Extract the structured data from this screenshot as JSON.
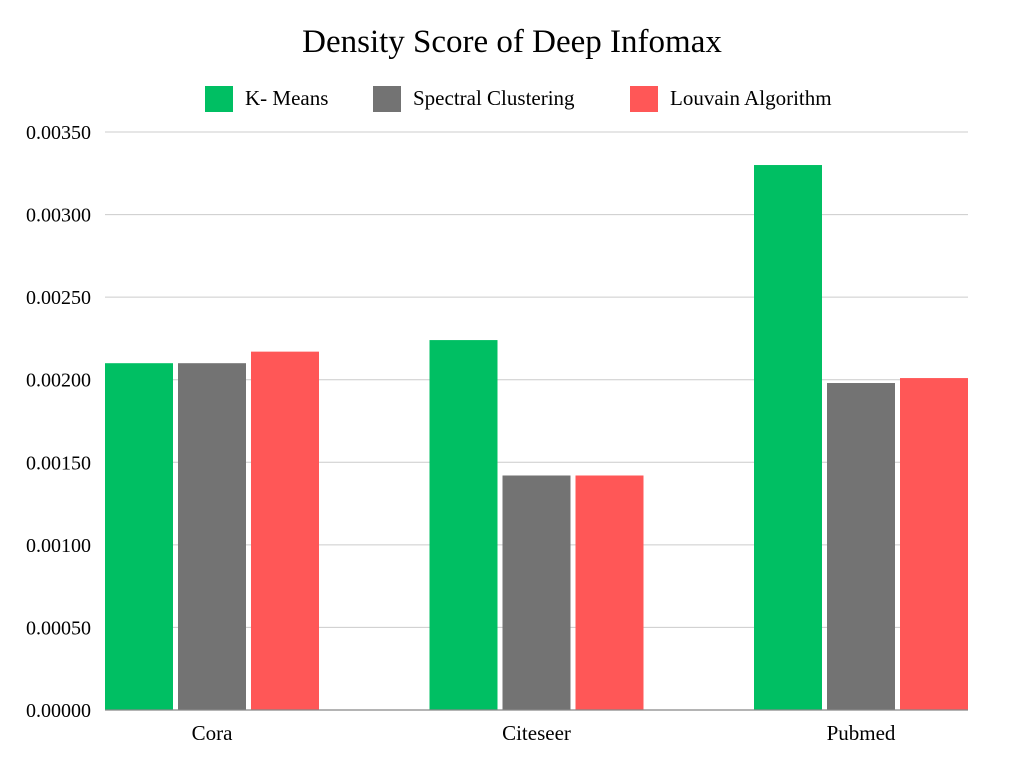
{
  "chart_data": {
    "type": "bar",
    "title": "Density Score of Deep Infomax",
    "xlabel": "",
    "ylabel": "",
    "categories": [
      "Cora",
      "Citeseer",
      "Pubmed"
    ],
    "series": [
      {
        "name": "K- Means",
        "color": "#00BF63",
        "values": [
          0.0021,
          0.00224,
          0.0033
        ]
      },
      {
        "name": "Spectral Clustering",
        "color": "#737373",
        "values": [
          0.0021,
          0.00142,
          0.00198
        ]
      },
      {
        "name": "Louvain Algorithm",
        "color": "#FF5757",
        "values": [
          0.00217,
          0.00142,
          0.00201
        ]
      }
    ],
    "ylim": [
      0,
      0.0035
    ],
    "yticks": [
      "0.00000",
      "0.00050",
      "0.00100",
      "0.00150",
      "0.00200",
      "0.00250",
      "0.00300",
      "0.00350"
    ],
    "grid": true,
    "legend_position": "top-center"
  }
}
